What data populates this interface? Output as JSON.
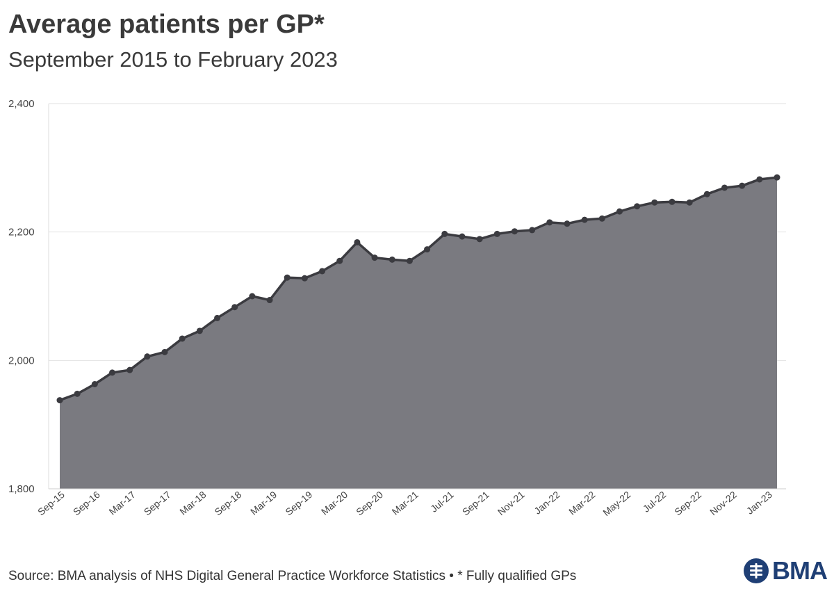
{
  "chart_data": {
    "type": "area",
    "title": "Average patients per GP*",
    "subtitle": "September 2015 to February 2023",
    "ylim": [
      1800,
      2400
    ],
    "yticks": [
      1800,
      2000,
      2200,
      2400
    ],
    "ytick_labels": [
      "1,800",
      "2,000",
      "2,200",
      "2,400"
    ],
    "xtick_labels": [
      "Sep-15",
      "Sep-16",
      "Mar-17",
      "Sep-17",
      "Mar-18",
      "Sep-18",
      "Mar-19",
      "Sep-19",
      "Mar-20",
      "Sep-20",
      "Mar-21",
      "Jul-21",
      "Sep-21",
      "Nov-21",
      "Jan-22",
      "Mar-22",
      "May-22",
      "Jul-22",
      "Sep-22",
      "Nov-22",
      "Jan-23"
    ],
    "series": [
      {
        "values": [
          1938,
          1948,
          1963,
          1981,
          1985,
          2006,
          2013,
          2034,
          2046,
          2066,
          2083,
          2100,
          2094,
          2129,
          2128,
          2139,
          2155,
          2184,
          2160,
          2157,
          2155,
          2173,
          2197,
          2193,
          2189,
          2197,
          2201,
          2203,
          2215,
          2213,
          2219,
          2221,
          2232,
          2240,
          2246,
          2247,
          2246,
          2259,
          2269,
          2272,
          2282,
          2285
        ]
      }
    ],
    "grid": true,
    "fill_color": "#7a7a80",
    "line_color": "#3b3b40"
  },
  "footer": {
    "source": "Source: BMA analysis of NHS Digital General Practice Workforce Statistics • * Fully qualified GPs"
  },
  "brand": {
    "name": "BMA",
    "color": "#1f3f75"
  }
}
